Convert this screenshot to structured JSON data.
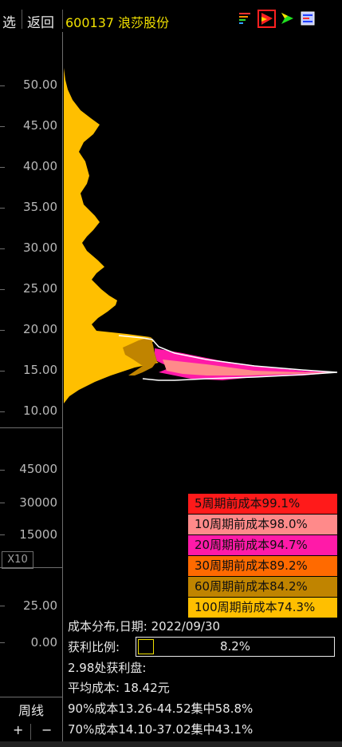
{
  "topbar": {
    "select_label": "选",
    "back_label": "返回",
    "stock_title": "600137 浪莎股份"
  },
  "price_axis": [
    "50.00",
    "45.00",
    "40.00",
    "35.00",
    "30.00",
    "25.00",
    "20.00",
    "15.00",
    "10.00"
  ],
  "volume_axis": [
    "45000",
    "30000",
    "15000"
  ],
  "zoom_label": "X10",
  "indicator_axis": [
    "25.00",
    "0.00"
  ],
  "period_label": "周线",
  "plus_label": "+",
  "minus_label": "−",
  "legend": [
    {
      "label": "5周期前成本99.1%",
      "color": "#ff1a1a"
    },
    {
      "label": "10周期前成本98.0%",
      "color": "#ff8a8a"
    },
    {
      "label": "20周期前成本94.7%",
      "color": "#ff1aa8"
    },
    {
      "label": "30周期前成本89.2%",
      "color": "#ff6a00"
    },
    {
      "label": "60周期前成本84.2%",
      "color": "#c08400"
    },
    {
      "label": "100周期前成本74.3%",
      "color": "#ffbf00"
    }
  ],
  "info": {
    "date_line": "成本分布,日期: 2022/09/30",
    "profit_label": "获利比例:",
    "profit_ratio": "8.2%",
    "profit_fraction": 0.082,
    "profit_price_line": "2.98处获利盘:",
    "avg_cost_line": "平均成本: 18.42元",
    "c90_line": "90%成本13.26-44.52集中58.8%",
    "c70_line": "70%成本14.10-37.02集中43.1%"
  },
  "colors": {
    "title": "#f0e000",
    "main_fill": "#ffbf00",
    "dark_gold": "#c08400",
    "magenta": "#ff1aa8",
    "pink": "#ff8a8a"
  }
}
